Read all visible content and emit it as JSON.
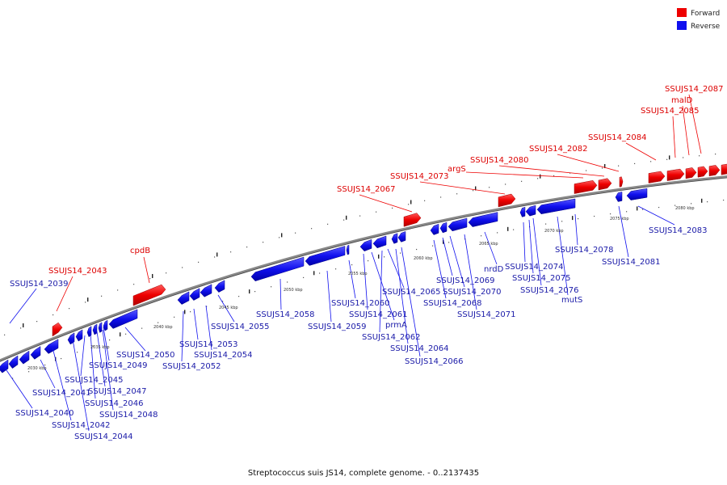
{
  "caption": "Streptococcus suis JS14, complete genome. - 0..2137435",
  "colors": {
    "forward": "#ee0000",
    "reverse": "#1010ee",
    "backbone": "#888888"
  },
  "legend": {
    "forward_label": "Forward",
    "reverse_label": "Reverse"
  },
  "scale_ticks": [
    "2030 kbp",
    "2035 kbp",
    "2040 kbp",
    "2045 kbp",
    "2050 kbp",
    "2055 kbp",
    "2060 kbp",
    "2065 kbp",
    "2070 kbp",
    "2075 kbp",
    "2080 kbp"
  ],
  "forward_genes": [
    "SSUJS14_2043",
    "cpdB",
    "SSUJS14_2067",
    "SSUJS14_2073",
    "argS",
    "SSUJS14_2080",
    "SSUJS14_2082",
    "SSUJS14_2084",
    "SSUJS14_2085",
    "malD",
    "SSUJS14_2087"
  ],
  "reverse_genes": [
    "SSUJS14_2039",
    "SSUJS14_2040",
    "SSUJS14_2041",
    "SSUJS14_2042",
    "SSUJS14_2044",
    "SSUJS14_2045",
    "SSUJS14_2046",
    "SSUJS14_2047",
    "SSUJS14_2048",
    "SSUJS14_2049",
    "SSUJS14_2050",
    "SSUJS14_2052",
    "SSUJS14_2053",
    "SSUJS14_2054",
    "SSUJS14_2055",
    "SSUJS14_2058",
    "SSUJS14_2059",
    "SSUJS14_2060",
    "SSUJS14_2061",
    "prmA",
    "SSUJS14_2062",
    "SSUJS14_2064",
    "SSUJS14_2065",
    "SSUJS14_2066",
    "SSUJS14_2068",
    "SSUJS14_2069",
    "SSUJS14_2070",
    "SSUJS14_2071",
    "nrdD",
    "SSUJS14_2074",
    "SSUJS14_2075",
    "SSUJS14_2076",
    "mutS",
    "SSUJS14_2078",
    "SSUJS14_2081",
    "SSUJS14_2083"
  ]
}
